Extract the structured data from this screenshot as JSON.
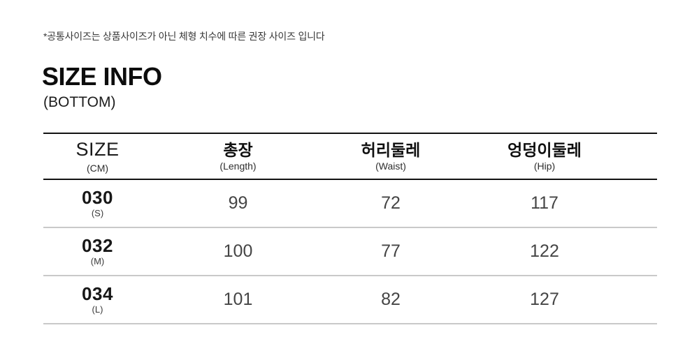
{
  "note": "*공통사이즈는 상품사이즈가 아닌 체형 치수에 따른 권장 사이즈 입니다",
  "title": "SIZE INFO",
  "subtitle": "(BOTTOM)",
  "table": {
    "columns": [
      {
        "label": "SIZE",
        "sub": "(CM)"
      },
      {
        "label": "총장",
        "sub": "(Length)"
      },
      {
        "label": "허리둘레",
        "sub": "(Waist)"
      },
      {
        "label": "엉덩이둘레",
        "sub": "(Hip)"
      }
    ],
    "rows": [
      {
        "size": "030",
        "size_sub": "(S)",
        "values": [
          "99",
          "72",
          "117"
        ]
      },
      {
        "size": "032",
        "size_sub": "(M)",
        "values": [
          "100",
          "77",
          "122"
        ]
      },
      {
        "size": "034",
        "size_sub": "(L)",
        "values": [
          "101",
          "82",
          "127"
        ]
      }
    ]
  }
}
